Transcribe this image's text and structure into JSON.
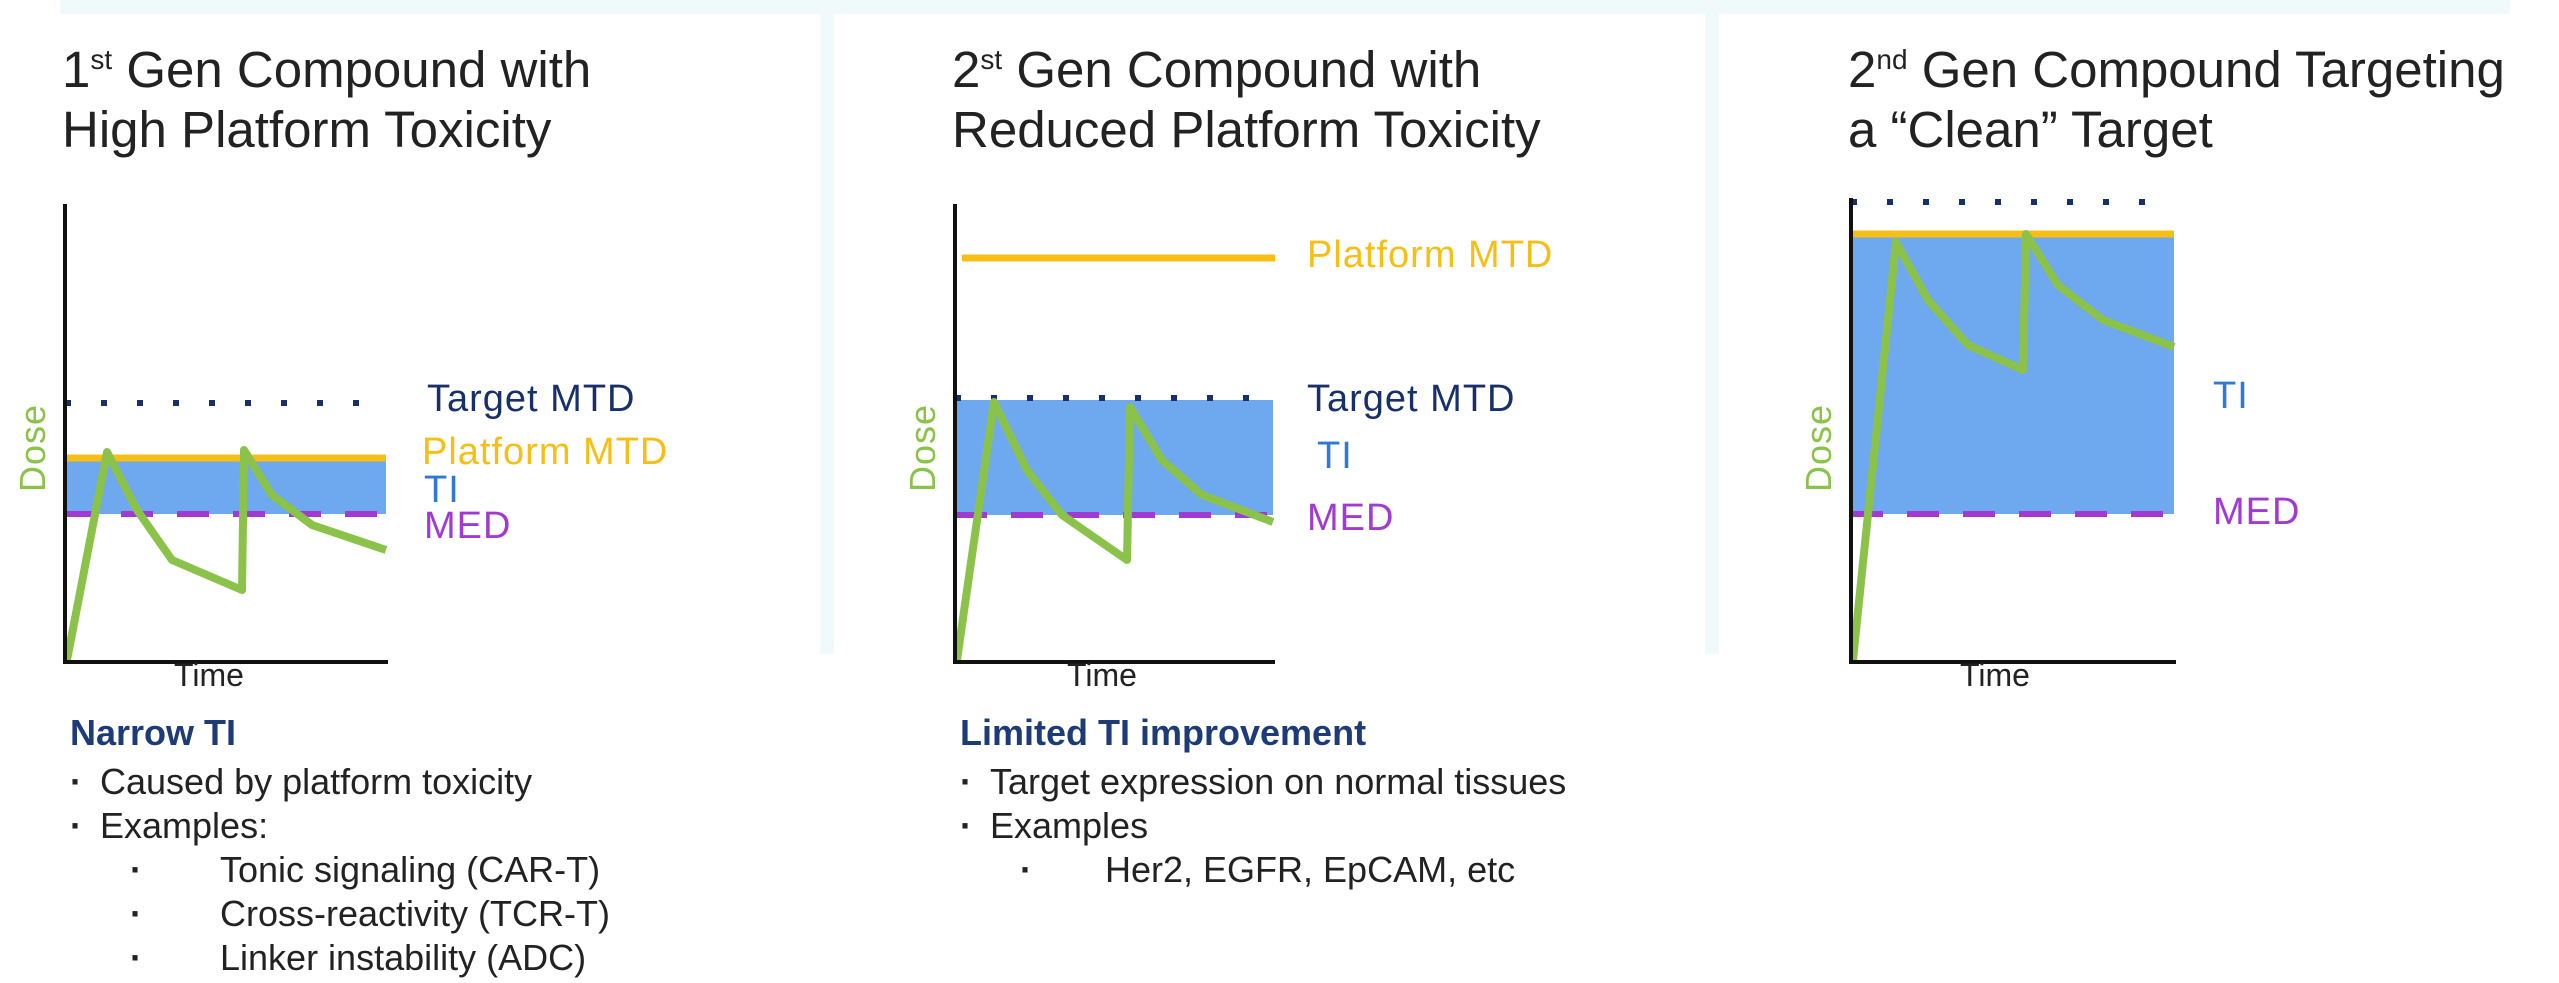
{
  "panels": [
    {
      "title_sup_num": "1",
      "title_sup": "st",
      "title_line1_rest": " Gen Compound with",
      "title_line2": "High Platform  Toxicity",
      "labels": {
        "target": "Target  MTD",
        "platform": "Platform  MTD",
        "ti": "TI",
        "med": "MED"
      },
      "axis": {
        "y": "Dose",
        "x": "Time"
      },
      "caption": {
        "heading": "Narrow TI",
        "bullets": [
          "Caused by platform toxicity",
          "Examples:"
        ],
        "sub_bullets": [
          "Tonic signaling (CAR-T)",
          "Cross-reactivity (TCR-T)",
          "Linker instability (ADC)"
        ]
      }
    },
    {
      "title_sup_num": "2",
      "title_sup": "st",
      "title_line1_rest": " Gen Compound with",
      "title_line2": "Reduced Platform Toxicity",
      "labels": {
        "target": "Target  MTD",
        "platform": "Platform  MTD",
        "ti": "TI",
        "med": "MED"
      },
      "axis": {
        "y": "Dose",
        "x": "Time"
      },
      "caption": {
        "heading": "Limited TI improvement",
        "bullets": [
          "Target expression on normal tissues",
          "Examples"
        ],
        "sub_bullets": [
          "Her2, EGFR, EpCAM, etc"
        ]
      }
    },
    {
      "title_sup_num": "2",
      "title_sup": "nd",
      "title_line1_rest": " Gen Compound Targeting",
      "title_line2": "a “Clean” Target",
      "labels": {
        "ti": "TI",
        "med": "MED"
      },
      "axis": {
        "y": "Dose",
        "x": "Time"
      }
    }
  ],
  "colors": {
    "target_mtd": "#17306b",
    "platform_mtd": "#f7bf15",
    "ti_fill": "#6ea8ee",
    "med": "#a23ad2",
    "dose_curve": "#8bc34a"
  }
}
